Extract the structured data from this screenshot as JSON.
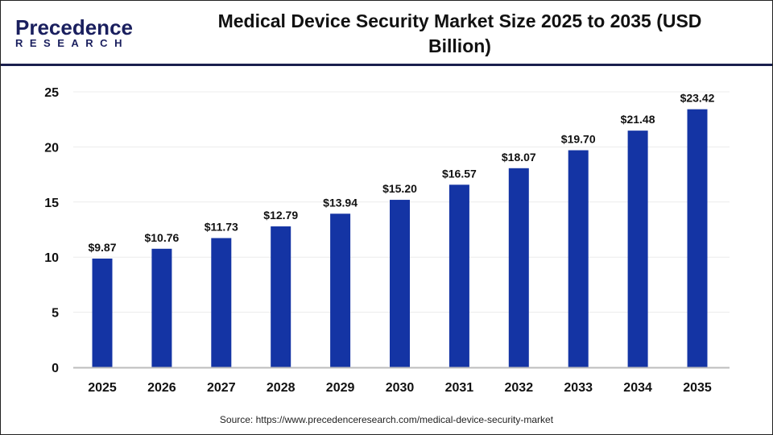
{
  "logo": {
    "line1": "Precedence",
    "line2": "RESEARCH"
  },
  "title": "Medical Device Security Market Size 2025 to 2035 (USD Billion)",
  "source": "Source: https://www.precedenceresearch.com/medical-device-security-market",
  "colors": {
    "bar": "#1434a4",
    "header_rule": "#1a1f4e"
  },
  "chart_data": {
    "type": "bar",
    "title": "Medical Device Security Market Size 2025 to 2035 (USD Billion)",
    "categories": [
      "2025",
      "2026",
      "2027",
      "2028",
      "2029",
      "2030",
      "2031",
      "2032",
      "2033",
      "2034",
      "2035"
    ],
    "values": [
      9.87,
      10.76,
      11.73,
      12.79,
      13.94,
      15.2,
      16.57,
      18.07,
      19.7,
      21.48,
      23.42
    ],
    "data_labels": [
      "$9.87",
      "$10.76",
      "$11.73",
      "$12.79",
      "$13.94",
      "$15.20",
      "$16.57",
      "$18.07",
      "$19.70",
      "$21.48",
      "$23.42"
    ],
    "yticks": [
      0,
      5,
      10,
      15,
      20,
      25
    ],
    "ylim": [
      0,
      25
    ],
    "xlabel": "",
    "ylabel": "",
    "grid": true,
    "legend": "none"
  }
}
